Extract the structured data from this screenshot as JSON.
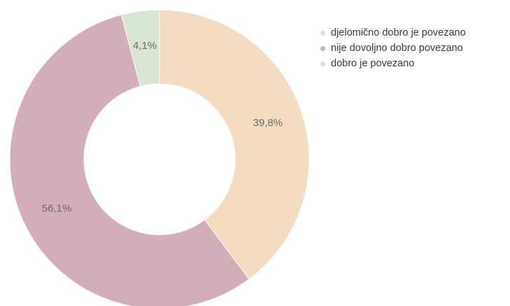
{
  "chart_data": {
    "type": "pie",
    "variant": "donut",
    "title": "",
    "slices": [
      {
        "label": "djelomično dobro je povezano",
        "value": 39.8,
        "value_label": "39,8%",
        "color": "#f4dcc0"
      },
      {
        "label": "nije dovoljno dobro povezano",
        "value": 56.1,
        "value_label": "56,1%",
        "color": "#d3adb7"
      },
      {
        "label": "dobro je povezano",
        "value": 4.1,
        "value_label": "4,1%",
        "color": "#d6e6d2"
      }
    ],
    "legend_position": "top-right",
    "label_color": "#6b6b6b"
  }
}
